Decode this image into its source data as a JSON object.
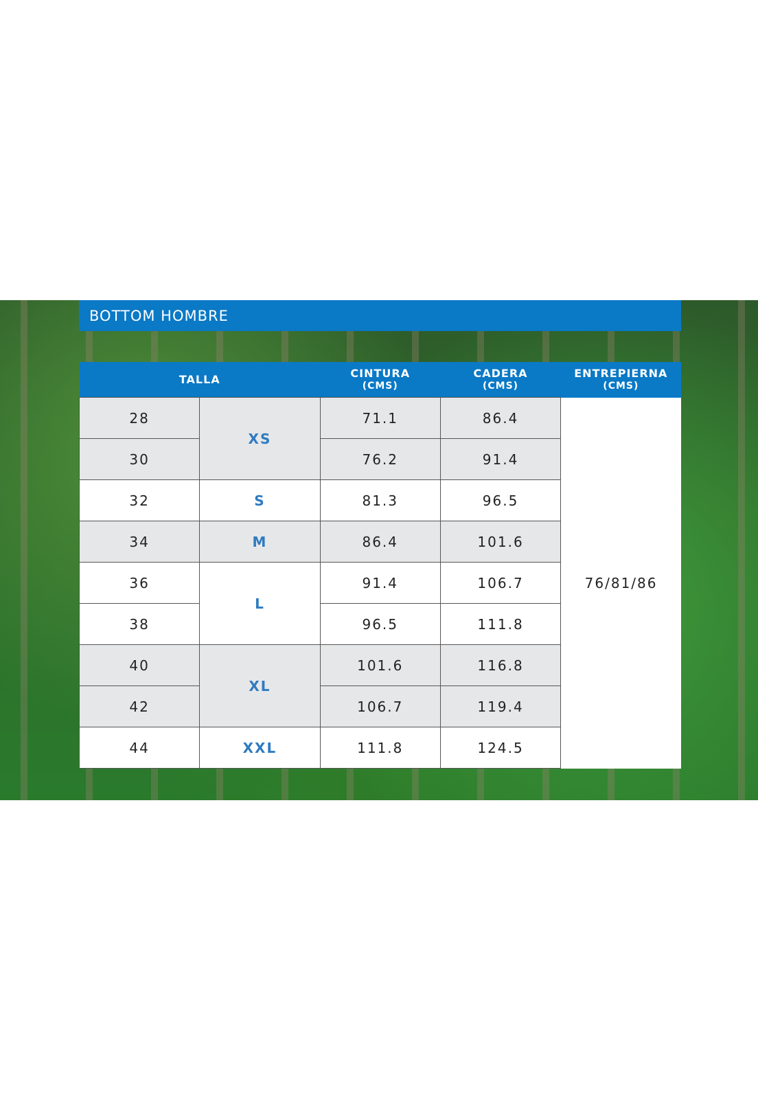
{
  "title": "BOTTOM HOMBRE",
  "headers": {
    "talla": "TALLA",
    "cintura": "CINTURA",
    "cadera": "CADERA",
    "entrepierna": "ENTREPIERNA",
    "unit": "(CMS)"
  },
  "inseam": "76/81/86",
  "sizes": {
    "xs": "XS",
    "s": "S",
    "m": "M",
    "l": "L",
    "xl": "XL",
    "xxl": "XXL"
  },
  "rows": [
    {
      "talla": "28",
      "cintura": "71.1",
      "cadera": "86.4"
    },
    {
      "talla": "30",
      "cintura": "76.2",
      "cadera": "91.4"
    },
    {
      "talla": "32",
      "cintura": "81.3",
      "cadera": "96.5"
    },
    {
      "talla": "34",
      "cintura": "86.4",
      "cadera": "101.6"
    },
    {
      "talla": "36",
      "cintura": "91.4",
      "cadera": "106.7"
    },
    {
      "talla": "38",
      "cintura": "96.5",
      "cadera": "111.8"
    },
    {
      "talla": "40",
      "cintura": "101.6",
      "cadera": "116.8"
    },
    {
      "talla": "42",
      "cintura": "106.7",
      "cadera": "119.4"
    },
    {
      "talla": "44",
      "cintura": "111.8",
      "cadera": "124.5"
    }
  ],
  "colors": {
    "brand_blue": "#0a79c6",
    "size_blue": "#2f7bc0",
    "row_gray": "#e6e7e9"
  }
}
